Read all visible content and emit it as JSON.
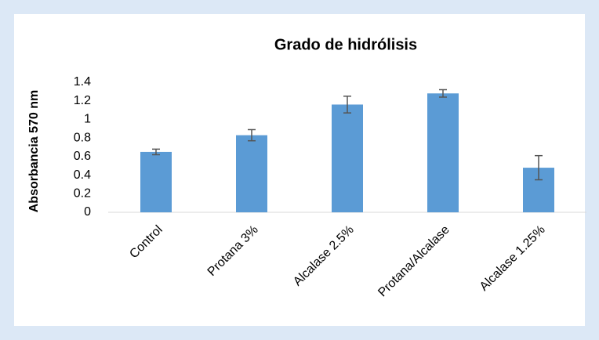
{
  "chart_data": {
    "type": "bar",
    "title": "Grado de hidrólisis",
    "y_label": "Absorbancia 570 nm",
    "categories": [
      "Control",
      "Protana 3%",
      "Alcalase 2.5%",
      "Protana/Alcalase",
      "Alcalase 1.25%"
    ],
    "values": [
      0.65,
      0.83,
      1.16,
      1.28,
      0.48
    ],
    "errors": [
      0.03,
      0.06,
      0.09,
      0.04,
      0.13
    ],
    "color": "#5b9bd5",
    "error_color": "#555555",
    "ylim": [
      0,
      1.4
    ],
    "yticks": [
      0,
      0.2,
      0.4,
      0.6,
      0.8,
      1,
      1.2,
      1.4
    ],
    "grid": false
  }
}
